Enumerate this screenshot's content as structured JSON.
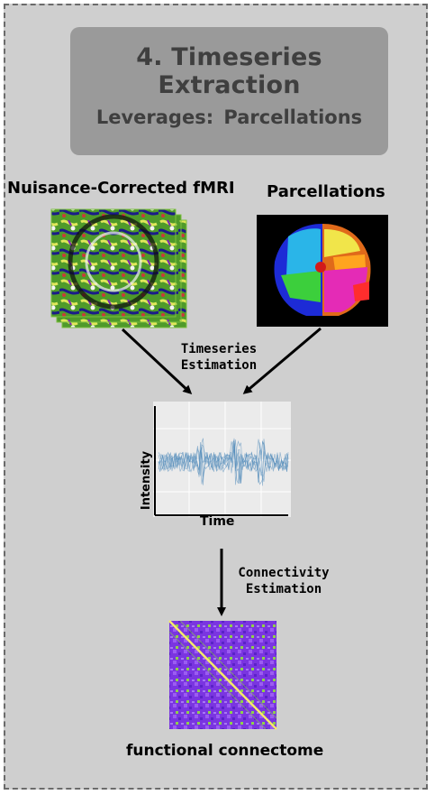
{
  "title": "4. Timeseries Extraction",
  "leverages_label": "Leverages:",
  "leverages_value": "Parcellations",
  "inputs": {
    "fmri_label": "Nuisance-Corrected fMRI",
    "parcellation_label": "Parcellations"
  },
  "steps": {
    "timeseries_estimation_line1": "Timeseries",
    "timeseries_estimation_line2": "Estimation",
    "connectivity_estimation_line1": "Connectivity",
    "connectivity_estimation_line2": "Estimation"
  },
  "plot": {
    "ylabel": "Intensity",
    "xlabel": "Time"
  },
  "output_label": "functional connectome",
  "colors": {
    "background": "#cfcfcf",
    "title_box": "#9a9a9a",
    "signal": "#4a86b8",
    "matrix_base": "#7a35e0"
  }
}
